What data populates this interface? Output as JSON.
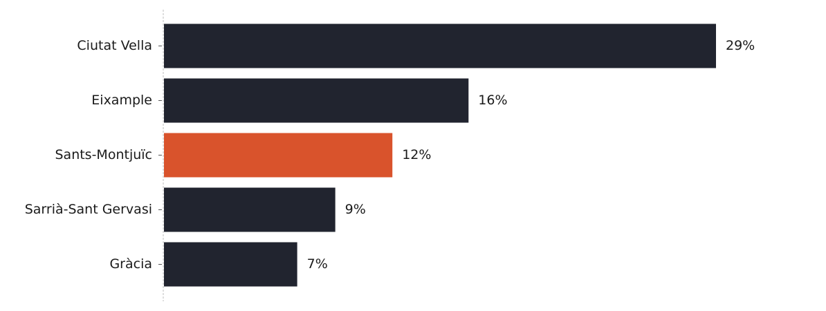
{
  "chart_data": {
    "type": "bar",
    "orientation": "horizontal",
    "categories": [
      "Ciutat Vella",
      "Eixample",
      "Sants-Montjuïc",
      "Sarrià-Sant Gervasi",
      "Gràcia"
    ],
    "values": [
      29,
      16,
      12,
      9,
      7
    ],
    "value_labels": [
      "29%",
      "16%",
      "12%",
      "9%",
      "7%"
    ],
    "colors": [
      "#21242f",
      "#21242f",
      "#d9532c",
      "#21242f",
      "#21242f"
    ]
  }
}
